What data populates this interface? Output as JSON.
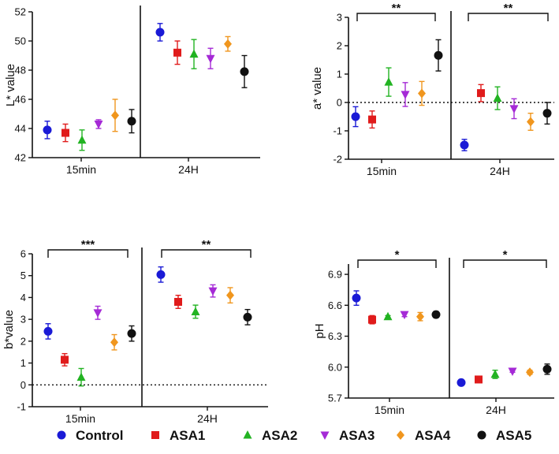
{
  "series_names": [
    "Control",
    "ASA1",
    "ASA2",
    "ASA3",
    "ASA4",
    "ASA5"
  ],
  "series_colors": [
    "#1a1ad6",
    "#e01b1b",
    "#22b322",
    "#a52ad6",
    "#f0961e",
    "#111111"
  ],
  "series_markers": [
    "circle",
    "square",
    "triangle-up",
    "triangle-down",
    "diamond",
    "circle"
  ],
  "groups": [
    "15min",
    "24H"
  ],
  "chart_data": [
    {
      "type": "scatter",
      "title": "",
      "ylabel": "L* value",
      "ylim": [
        42,
        52
      ],
      "yticks": [
        42,
        44,
        46,
        48,
        50,
        52
      ],
      "zero_line": false,
      "categories": [
        "15min",
        "24H"
      ],
      "series": [
        {
          "name": "Control",
          "values": [
            43.9,
            50.6
          ],
          "errors": [
            0.6,
            0.6
          ]
        },
        {
          "name": "ASA1",
          "values": [
            43.7,
            49.2
          ],
          "errors": [
            0.6,
            0.8
          ]
        },
        {
          "name": "ASA2",
          "values": [
            43.2,
            49.1
          ],
          "errors": [
            0.7,
            1.0
          ]
        },
        {
          "name": "ASA3",
          "values": [
            44.3,
            48.8
          ],
          "errors": [
            0.3,
            0.7
          ]
        },
        {
          "name": "ASA4",
          "values": [
            44.9,
            49.8
          ],
          "errors": [
            1.1,
            0.5
          ]
        },
        {
          "name": "ASA5",
          "values": [
            44.5,
            47.9
          ],
          "errors": [
            0.8,
            1.1
          ]
        }
      ],
      "significance": []
    },
    {
      "type": "scatter",
      "title": "",
      "ylabel": "a* value",
      "ylim": [
        -2,
        3
      ],
      "yticks": [
        -2,
        -1,
        0,
        1,
        2,
        3
      ],
      "zero_line": true,
      "categories": [
        "15min",
        "24H"
      ],
      "series": [
        {
          "name": "Control",
          "values": [
            -0.5,
            -1.5
          ],
          "errors": [
            0.35,
            0.2
          ]
        },
        {
          "name": "ASA1",
          "values": [
            -0.6,
            0.33
          ],
          "errors": [
            0.3,
            0.3
          ]
        },
        {
          "name": "ASA2",
          "values": [
            0.72,
            0.15
          ],
          "errors": [
            0.5,
            0.4
          ]
        },
        {
          "name": "ASA3",
          "values": [
            0.28,
            -0.22
          ],
          "errors": [
            0.42,
            0.35
          ]
        },
        {
          "name": "ASA4",
          "values": [
            0.32,
            -0.68
          ],
          "errors": [
            0.42,
            0.3
          ]
        },
        {
          "name": "ASA5",
          "values": [
            1.66,
            -0.38
          ],
          "errors": [
            0.55,
            0.38
          ]
        }
      ],
      "significance": [
        {
          "group": "15min",
          "label": "**"
        },
        {
          "group": "24H",
          "label": "**"
        }
      ]
    },
    {
      "type": "scatter",
      "title": "",
      "ylabel": "b*value",
      "ylim": [
        -1,
        6
      ],
      "yticks": [
        -1,
        0,
        1,
        2,
        3,
        4,
        5,
        6
      ],
      "zero_line": true,
      "categories": [
        "15min",
        "24H"
      ],
      "series": [
        {
          "name": "Control",
          "values": [
            2.45,
            5.05
          ],
          "errors": [
            0.35,
            0.35
          ]
        },
        {
          "name": "ASA1",
          "values": [
            1.15,
            3.8
          ],
          "errors": [
            0.28,
            0.3
          ]
        },
        {
          "name": "ASA2",
          "values": [
            0.35,
            3.35
          ],
          "errors": [
            0.4,
            0.3
          ]
        },
        {
          "name": "ASA3",
          "values": [
            3.3,
            4.3
          ],
          "errors": [
            0.3,
            0.28
          ]
        },
        {
          "name": "ASA4",
          "values": [
            1.95,
            4.1
          ],
          "errors": [
            0.35,
            0.35
          ]
        },
        {
          "name": "ASA5",
          "values": [
            2.35,
            3.1
          ],
          "errors": [
            0.35,
            0.35
          ]
        }
      ],
      "significance": [
        {
          "group": "15min",
          "label": "***"
        },
        {
          "group": "24H",
          "label": "**"
        }
      ]
    },
    {
      "type": "scatter",
      "title": "",
      "ylabel": "pH",
      "ylim": [
        5.7,
        7.0
      ],
      "yticks": [
        5.7,
        6.0,
        6.3,
        6.6,
        6.9
      ],
      "ytick_labels": [
        "5.7",
        "6.0",
        "6.3",
        "6.6",
        "6.9"
      ],
      "zero_line": false,
      "categories": [
        "15min",
        "24H"
      ],
      "series": [
        {
          "name": "Control",
          "values": [
            6.67,
            5.85
          ],
          "errors": [
            0.07,
            0.02
          ]
        },
        {
          "name": "ASA1",
          "values": [
            6.46,
            5.88
          ],
          "errors": [
            0.04,
            0.03
          ]
        },
        {
          "name": "ASA2",
          "values": [
            6.49,
            5.93
          ],
          "errors": [
            0.01,
            0.04
          ]
        },
        {
          "name": "ASA3",
          "values": [
            6.51,
            5.96
          ],
          "errors": [
            0.02,
            0.01
          ]
        },
        {
          "name": "ASA4",
          "values": [
            6.49,
            5.95
          ],
          "errors": [
            0.04,
            0.02
          ]
        },
        {
          "name": "ASA5",
          "values": [
            6.51,
            5.98
          ],
          "errors": [
            0.03,
            0.05
          ]
        }
      ],
      "significance": [
        {
          "group": "15min",
          "label": "*"
        },
        {
          "group": "24H",
          "label": "*"
        }
      ]
    }
  ]
}
